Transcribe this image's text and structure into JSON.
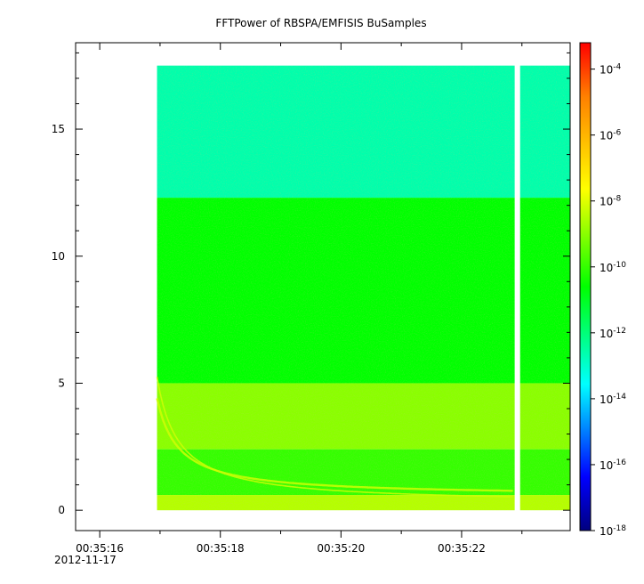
{
  "chart_data": {
    "type": "heatmap",
    "title": "FFTPower of RBSPA/EMFISIS  BuSamples",
    "xlabel": "",
    "ylabel": "",
    "x_ticks": [
      {
        "label": "00:35:16",
        "value": 16
      },
      {
        "label": "00:35:18",
        "value": 18
      },
      {
        "label": "00:35:20",
        "value": 20
      },
      {
        "label": "00:35:22",
        "value": 22
      }
    ],
    "x_date_label": "2012-11-17",
    "x_range": [
      15.6,
      23.8
    ],
    "y_ticks": [
      0,
      5,
      10,
      15
    ],
    "y_range": [
      -0.8,
      18.4
    ],
    "data_extent": {
      "x": [
        16.95,
        23.8
      ],
      "y": [
        0,
        17.5
      ]
    },
    "gap_x": [
      22.88,
      22.97
    ],
    "colorbar": {
      "scale": "log",
      "range_exp": [
        -18,
        -3.2
      ],
      "ticks": [
        {
          "base": "10",
          "exp": "-4"
        },
        {
          "base": "10",
          "exp": "-6"
        },
        {
          "base": "10",
          "exp": "-8"
        },
        {
          "base": "10",
          "exp": "-10"
        },
        {
          "base": "10",
          "exp": "-12"
        },
        {
          "base": "10",
          "exp": "-14"
        },
        {
          "base": "10",
          "exp": "-16"
        },
        {
          "base": "10",
          "exp": "-18"
        }
      ]
    },
    "bands": [
      {
        "y": [
          12.3,
          17.5
        ],
        "log_power": -12.6
      },
      {
        "y": [
          5.0,
          12.3
        ],
        "log_power": -10.6
      },
      {
        "y": [
          2.4,
          5.0
        ],
        "log_power": -9.0
      },
      {
        "y": [
          0.6,
          2.4
        ],
        "log_power": -10.0
      },
      {
        "y": [
          0.0,
          0.6
        ],
        "log_power": -8.5
      }
    ]
  }
}
